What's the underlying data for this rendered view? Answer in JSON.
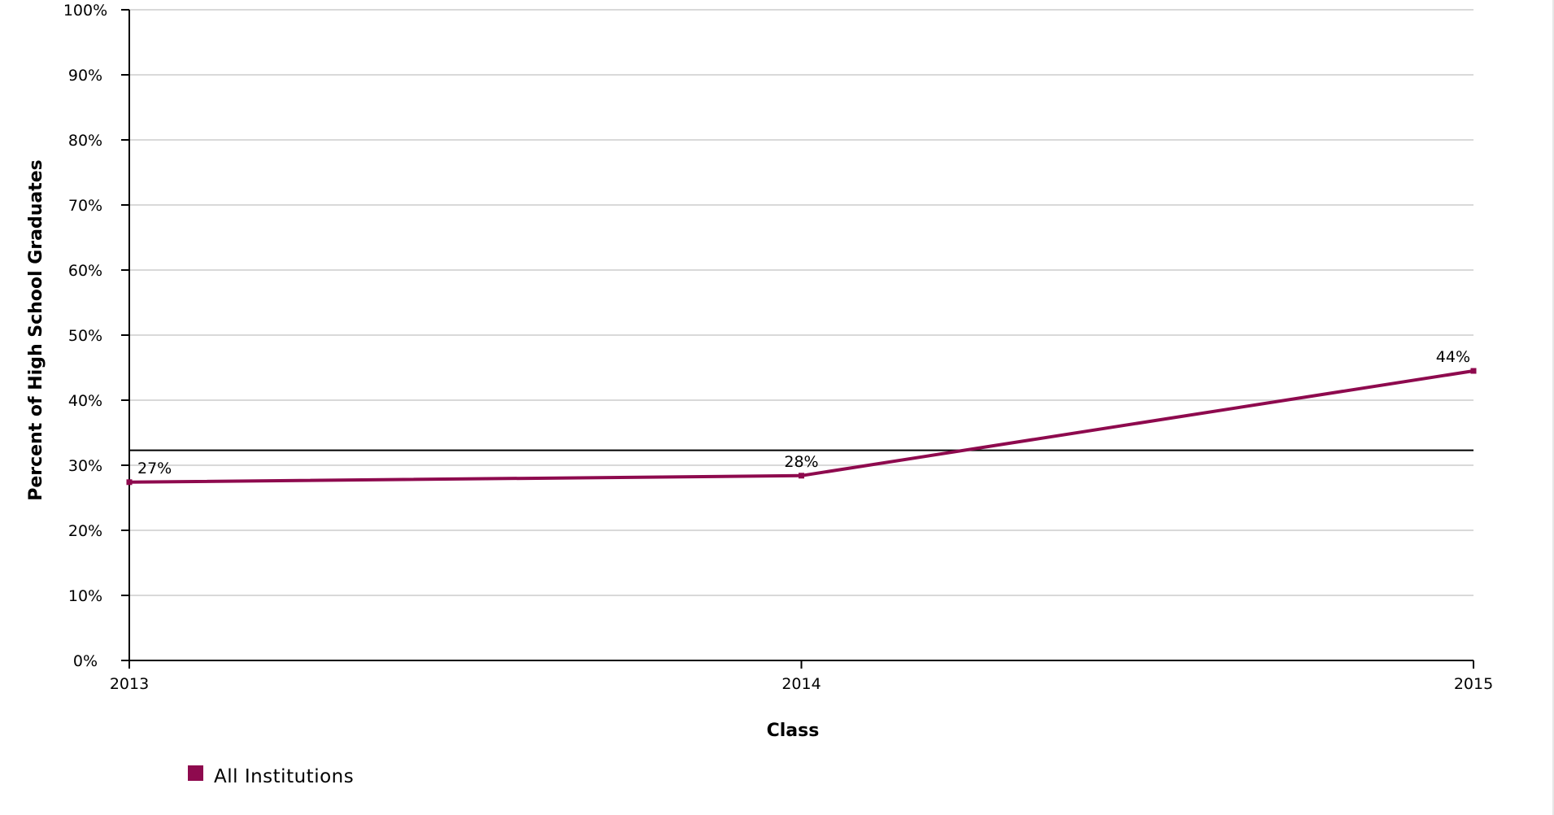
{
  "chart_data": {
    "type": "line",
    "x": [
      "2013",
      "2014",
      "2015"
    ],
    "series": [
      {
        "name": "All Institutions",
        "values": [
          27.4,
          28.4,
          44.5
        ],
        "data_labels": [
          "27%",
          "28%",
          "44%"
        ],
        "color": "#8e0a4e"
      }
    ],
    "reference_line": 32.3,
    "xlabel": "Class",
    "ylabel": "Percent of High School Graduates",
    "ylim": [
      0,
      100
    ],
    "yticks": [
      0,
      10,
      20,
      30,
      40,
      50,
      60,
      70,
      80,
      90,
      100
    ],
    "ytick_labels": [
      "0%",
      "10%",
      "20%",
      "30%",
      "40%",
      "50%",
      "60%",
      "70%",
      "80%",
      "90%",
      "100%"
    ],
    "grid": true,
    "legend": "bottom-left"
  },
  "colors": {
    "grid": "#d9d9d9",
    "axis": "#000000",
    "reference_line": "#000000"
  }
}
